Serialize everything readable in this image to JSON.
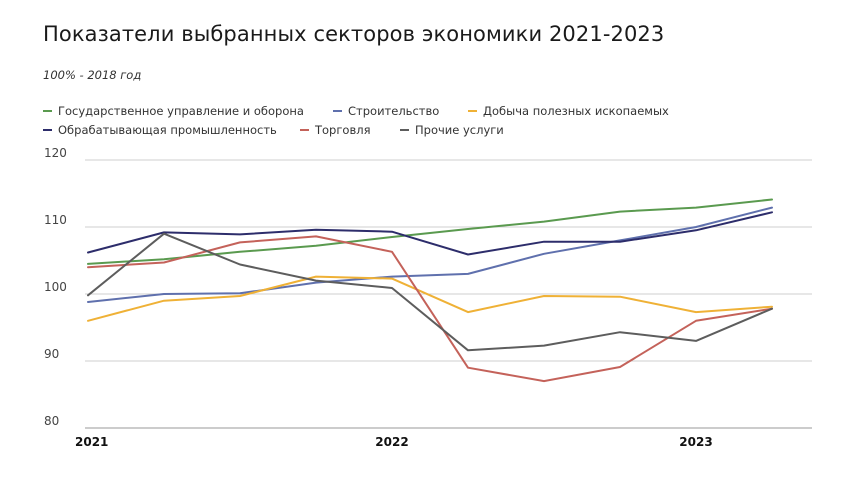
{
  "title": "Показатели выбранных секторов экономики 2021-2023",
  "subtitle": "100% - 2018 год",
  "colors": {
    "green": "#5a9a4f",
    "blue": "#5f70ad",
    "yellow": "#efb136",
    "navy": "#2d2d6b",
    "red": "#c4625a",
    "gray": "#5d5d5d",
    "grid": "#cfcfcf"
  },
  "chart_data": {
    "type": "line",
    "x": [
      0,
      1,
      2,
      3,
      4,
      5,
      6,
      7,
      8,
      9
    ],
    "x_tick_labels": [
      "2021",
      "2022",
      "2023"
    ],
    "x_tick_positions": [
      0,
      4,
      8
    ],
    "ylim": [
      80,
      120
    ],
    "y_ticks": [
      80,
      90,
      100,
      110,
      120
    ],
    "grid": true,
    "legend_position": "top",
    "series": [
      {
        "name": "Государственное управление и оборона",
        "color": "#5a9a4f",
        "values": [
          104.5,
          105.2,
          106.3,
          107.2,
          108.5,
          109.7,
          110.8,
          112.3,
          112.9,
          114.1
        ]
      },
      {
        "name": "Строительство",
        "color": "#5f70ad",
        "values": [
          98.8,
          100.0,
          100.1,
          101.7,
          102.6,
          103.0,
          106.0,
          108.0,
          110.0,
          112.9
        ]
      },
      {
        "name": "Добыча полезных ископаемых",
        "color": "#efb136",
        "values": [
          96.0,
          99.0,
          99.7,
          102.6,
          102.3,
          97.3,
          99.7,
          99.6,
          97.3,
          98.1
        ]
      },
      {
        "name": "Обрабатывающая промышленность",
        "color": "#2d2d6b",
        "values": [
          106.2,
          109.2,
          108.9,
          109.6,
          109.3,
          105.9,
          107.8,
          107.8,
          109.5,
          112.2
        ]
      },
      {
        "name": "Торговля",
        "color": "#c4625a",
        "values": [
          104.0,
          104.7,
          107.7,
          108.6,
          106.3,
          89.0,
          87.0,
          89.1,
          96.0,
          97.8
        ]
      },
      {
        "name": "Прочие услуги",
        "color": "#5d5d5d",
        "values": [
          99.8,
          109.0,
          104.4,
          102.0,
          100.9,
          91.6,
          92.3,
          94.3,
          93.0,
          97.8
        ]
      }
    ]
  }
}
